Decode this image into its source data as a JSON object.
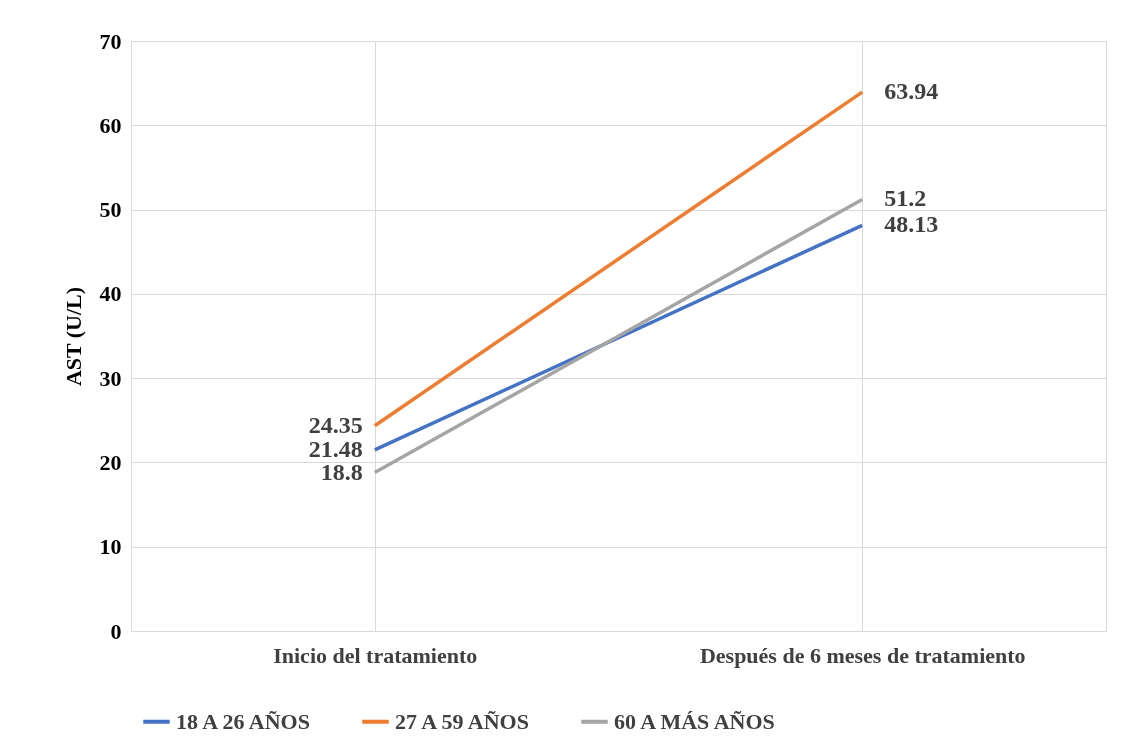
{
  "chart_data": {
    "type": "line",
    "ylabel": "AST (U/L)",
    "categories": [
      "Inicio del tratamiento",
      "Después de 6 meses de tratamiento"
    ],
    "series": [
      {
        "name": "18 A 26 AÑOS",
        "color": "#4472c4",
        "values": [
          21.48,
          48.13
        ]
      },
      {
        "name": "27 A 59 AÑOS",
        "color": "#ed7d31",
        "values": [
          24.35,
          63.94
        ]
      },
      {
        "name": "60 A MÁS AÑOS",
        "color": "#a5a5a5",
        "values": [
          18.8,
          51.2
        ]
      }
    ],
    "ylim": [
      0,
      70
    ],
    "yticks": [
      0,
      10,
      20,
      30,
      40,
      50,
      60,
      70
    ],
    "grid": true,
    "legend": "bottom",
    "data_labels": true,
    "marker": "none",
    "line_style": "solid"
  }
}
